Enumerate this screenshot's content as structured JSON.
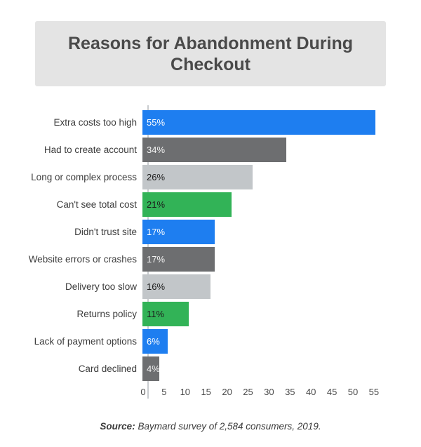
{
  "title": "Reasons for Abandonment During Checkout",
  "source": {
    "prefix": "Source:",
    "text": " Baymard survey of 2,584 consumers, 2019."
  },
  "colors": {
    "blue": "#1e7ef0",
    "dark_gray": "#6d6e70",
    "light_gray": "#c2c6c9",
    "green": "#32b357",
    "title_box_bg": "#e4e4e4",
    "axis_line": "#c9cccf"
  },
  "chart_data": {
    "type": "bar",
    "orientation": "horizontal",
    "title": "Reasons for Abandonment During Checkout",
    "xlabel": "",
    "ylabel": "",
    "xlim": [
      0,
      57
    ],
    "x_ticks": [
      0,
      5,
      10,
      15,
      20,
      25,
      30,
      35,
      40,
      45,
      50,
      55
    ],
    "grid": false,
    "legend": false,
    "unit": "%",
    "categories": [
      "Extra costs too high",
      "Had to create account",
      "Long or complex process",
      "Can't see total cost",
      "Didn't trust site",
      "Website errors or crashes",
      "Delivery too slow",
      "Returns policy",
      "Lack of payment options",
      "Card declined"
    ],
    "values": [
      55,
      34,
      26,
      21,
      17,
      17,
      16,
      11,
      6,
      4
    ],
    "bars": [
      {
        "label": "Extra costs too high",
        "value": 55,
        "display": "55%",
        "color": "#1e7ef0",
        "text_color": "#ffffff"
      },
      {
        "label": "Had to create account",
        "value": 34,
        "display": "34%",
        "color": "#6d6e70",
        "text_color": "#f5f5f5"
      },
      {
        "label": "Long or complex process",
        "value": 26,
        "display": "26%",
        "color": "#c2c6c9",
        "text_color": "#1c1c1c"
      },
      {
        "label": "Can't see total cost",
        "value": 21,
        "display": "21%",
        "color": "#32b357",
        "text_color": "#1c1c1c"
      },
      {
        "label": "Didn't trust site",
        "value": 17,
        "display": "17%",
        "color": "#1e7ef0",
        "text_color": "#ffffff"
      },
      {
        "label": "Website errors or crashes",
        "value": 17,
        "display": "17%",
        "color": "#6d6e70",
        "text_color": "#f5f5f5"
      },
      {
        "label": "Delivery too slow",
        "value": 16,
        "display": "16%",
        "color": "#c2c6c9",
        "text_color": "#1c1c1c"
      },
      {
        "label": "Returns policy",
        "value": 11,
        "display": "11%",
        "color": "#32b357",
        "text_color": "#1c1c1c"
      },
      {
        "label": "Lack of payment options",
        "value": 6,
        "display": "6%",
        "color": "#1e7ef0",
        "text_color": "#ffffff"
      },
      {
        "label": "Card declined",
        "value": 4,
        "display": "4%",
        "color": "#6d6e70",
        "text_color": "#f5f5f5"
      }
    ],
    "source": "Source: Baymard survey of 2,584 consumers, 2019."
  }
}
